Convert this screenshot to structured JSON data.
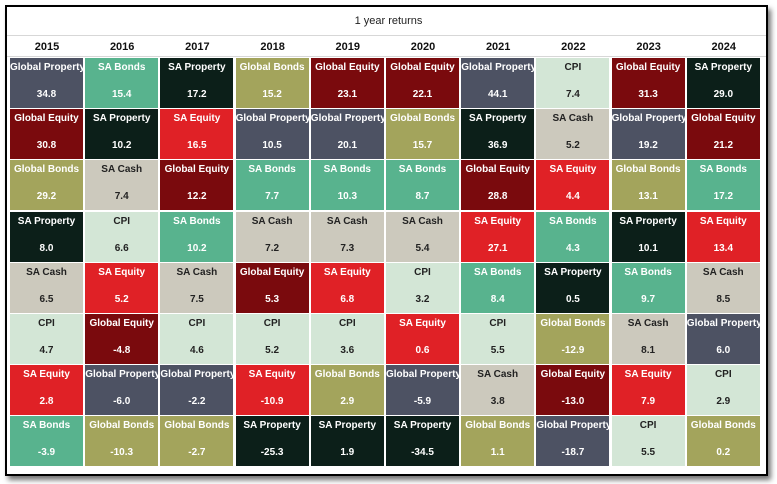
{
  "chart_data": {
    "type": "table",
    "title": "1 year returns",
    "years": [
      "2015",
      "2016",
      "2017",
      "2018",
      "2019",
      "2020",
      "2021",
      "2022",
      "2023",
      "2024"
    ],
    "asset_colors": {
      "Global Property": {
        "bg": "#4d5263",
        "fg": "#ffffff"
      },
      "SA Bonds": {
        "bg": "#58b38e",
        "fg": "#ffffff"
      },
      "SA Property": {
        "bg": "#0c1f19",
        "fg": "#ffffff"
      },
      "Global Bonds": {
        "bg": "#a3a45c",
        "fg": "#ffffff"
      },
      "Global Equity": {
        "bg": "#7a0a0d",
        "fg": "#ffffff"
      },
      "CPI": {
        "bg": "#d3e6d6",
        "fg": "#222222"
      },
      "SA Equity": {
        "bg": "#e02126",
        "fg": "#ffffff"
      },
      "SA Cash": {
        "bg": "#ccc9bd",
        "fg": "#222222"
      }
    },
    "columns": [
      [
        [
          "Global Property",
          "34.8"
        ],
        [
          "Global Equity",
          "30.8"
        ],
        [
          "Global Bonds",
          "29.2"
        ],
        [
          "SA Property",
          "8.0"
        ],
        [
          "SA Cash",
          "6.5"
        ],
        [
          "CPI",
          "4.7"
        ],
        [
          "SA Equity",
          "2.8"
        ],
        [
          "SA Bonds",
          "-3.9"
        ]
      ],
      [
        [
          "SA Bonds",
          "15.4"
        ],
        [
          "SA Property",
          "10.2"
        ],
        [
          "SA Cash",
          "7.4"
        ],
        [
          "CPI",
          "6.6"
        ],
        [
          "SA Equity",
          "5.2"
        ],
        [
          "Global Equity",
          "-4.8"
        ],
        [
          "Global Property",
          "-6.0"
        ],
        [
          "Global Bonds",
          "-10.3"
        ]
      ],
      [
        [
          "SA Property",
          "17.2"
        ],
        [
          "SA Equity",
          "16.5"
        ],
        [
          "Global Equity",
          "12.2"
        ],
        [
          "SA Bonds",
          "10.2"
        ],
        [
          "SA Cash",
          "7.5"
        ],
        [
          "CPI",
          "4.6"
        ],
        [
          "Global Property",
          "-2.2"
        ],
        [
          "Global Bonds",
          "-2.7"
        ]
      ],
      [
        [
          "Global Bonds",
          "15.2"
        ],
        [
          "Global Property",
          "10.5"
        ],
        [
          "SA Bonds",
          "7.7"
        ],
        [
          "SA Cash",
          "7.2"
        ],
        [
          "Global Equity",
          "5.3"
        ],
        [
          "CPI",
          "5.2"
        ],
        [
          "SA Equity",
          "-10.9"
        ],
        [
          "SA Property",
          "-25.3"
        ]
      ],
      [
        [
          "Global Equity",
          "23.1"
        ],
        [
          "Global Property",
          "20.1"
        ],
        [
          "SA Bonds",
          "10.3"
        ],
        [
          "SA Cash",
          "7.3"
        ],
        [
          "SA Equity",
          "6.8"
        ],
        [
          "CPI",
          "3.6"
        ],
        [
          "Global Bonds",
          "2.9"
        ],
        [
          "SA Property",
          "1.9"
        ]
      ],
      [
        [
          "Global Equity",
          "22.1"
        ],
        [
          "Global Bonds",
          "15.7"
        ],
        [
          "SA Bonds",
          "8.7"
        ],
        [
          "SA Cash",
          "5.4"
        ],
        [
          "CPI",
          "3.2"
        ],
        [
          "SA Equity",
          "0.6"
        ],
        [
          "Global Property",
          "-5.9"
        ],
        [
          "SA Property",
          "-34.5"
        ]
      ],
      [
        [
          "Global Property",
          "44.1"
        ],
        [
          "SA Property",
          "36.9"
        ],
        [
          "Global Equity",
          "28.8"
        ],
        [
          "SA Equity",
          "27.1"
        ],
        [
          "SA Bonds",
          "8.4"
        ],
        [
          "CPI",
          "5.5"
        ],
        [
          "SA Cash",
          "3.8"
        ],
        [
          "Global Bonds",
          "1.1"
        ]
      ],
      [
        [
          "CPI",
          "7.4"
        ],
        [
          "SA Cash",
          "5.2"
        ],
        [
          "SA Equity",
          "4.4"
        ],
        [
          "SA Bonds",
          "4.3"
        ],
        [
          "SA Property",
          "0.5"
        ],
        [
          "Global Bonds",
          "-12.9"
        ],
        [
          "Global Equity",
          "-13.0"
        ],
        [
          "Global Property",
          "-18.7"
        ]
      ],
      [
        [
          "Global Equity",
          "31.3"
        ],
        [
          "Global Property",
          "19.2"
        ],
        [
          "Global Bonds",
          "13.1"
        ],
        [
          "SA Property",
          "10.1"
        ],
        [
          "SA Bonds",
          "9.7"
        ],
        [
          "SA Cash",
          "8.1"
        ],
        [
          "SA Equity",
          "7.9"
        ],
        [
          "CPI",
          "5.5"
        ]
      ],
      [
        [
          "SA Property",
          "29.0"
        ],
        [
          "Global Equity",
          "21.2"
        ],
        [
          "SA Bonds",
          "17.2"
        ],
        [
          "SA Equity",
          "13.4"
        ],
        [
          "SA Cash",
          "8.5"
        ],
        [
          "Global Property",
          "6.0"
        ],
        [
          "CPI",
          "2.9"
        ],
        [
          "Global Bonds",
          "0.2"
        ]
      ]
    ]
  }
}
